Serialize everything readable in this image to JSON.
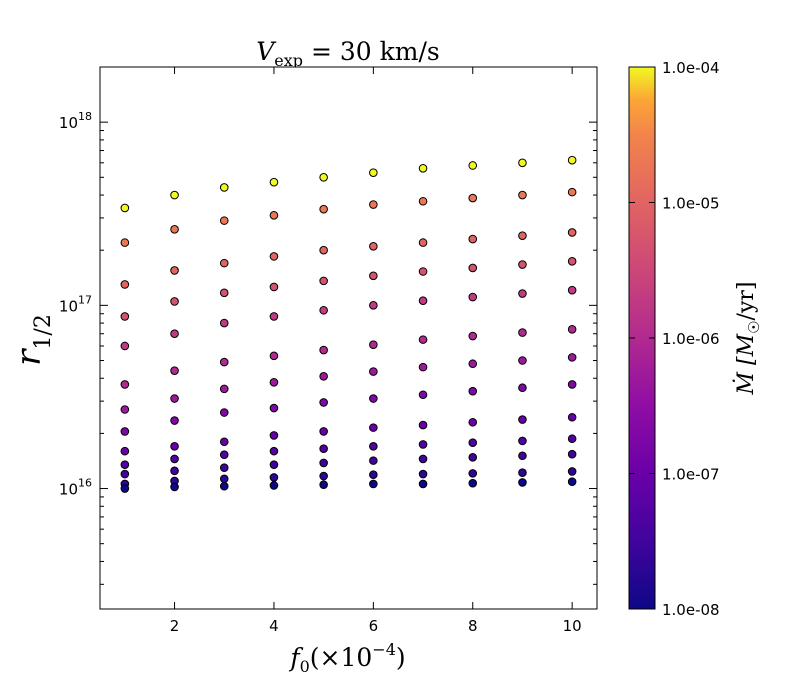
{
  "chart_data": {
    "type": "scatter",
    "title": "V_exp = 30 km/s",
    "title_main": "V",
    "title_sub": "exp",
    "title_rest": " = 30 km/s",
    "xlabel": "f₀(×10⁻⁴)",
    "xlabel_f": "f",
    "xlabel_f_sub": "0",
    "xlabel_rest": "(×10",
    "xlabel_exp": "−4",
    "xlabel_close": ")",
    "ylabel": "r_1/2",
    "ylabel_main": "r",
    "ylabel_sub": "1/2",
    "colorbar_label": "Ṁ [M☉/yr]",
    "colorbar_label_main": "Ṁ [M",
    "colorbar_label_sub": "☉",
    "colorbar_label_rest": "/yr]",
    "x_ticks": [
      2,
      4,
      6,
      8,
      10
    ],
    "x_tick_labels": [
      "2",
      "4",
      "6",
      "8",
      "10"
    ],
    "xlim": [
      0.5,
      10.5
    ],
    "yscale": "log",
    "ylim": [
      2200000000000000.0,
      2e+18
    ],
    "y_ticks": [
      1e+16,
      1e+17,
      1e+18
    ],
    "y_tick_base": "10",
    "y_tick_exps": [
      "16",
      "17",
      "18"
    ],
    "colorbar_scale": "log",
    "colorbar_range": [
      1e-08,
      0.0001
    ],
    "colorbar_ticks": [
      1e-08,
      1e-07,
      1e-06,
      1e-05,
      0.0001
    ],
    "colorbar_tick_labels": [
      "1.0e-08",
      "1.0e-07",
      "1.0e-06",
      "1.0e-05",
      "1.0e-04"
    ],
    "colormap": "plasma",
    "marker_edge_color": "#000000",
    "x": [
      1,
      2,
      3,
      4,
      5,
      6,
      7,
      8,
      9,
      10
    ],
    "series": [
      {
        "mdot": 0.0001,
        "color_value": 1.0,
        "values": [
          3.4e+17,
          4e+17,
          4.4e+17,
          4.7e+17,
          5e+17,
          5.3e+17,
          5.6e+17,
          5.8e+17,
          6e+17,
          6.2e+17
        ]
      },
      {
        "mdot": 2e-05,
        "color_value": 0.825,
        "values": [
          2.2e+17,
          2.6e+17,
          2.9e+17,
          3.1e+17,
          3.35e+17,
          3.55e+17,
          3.7e+17,
          3.85e+17,
          4e+17,
          4.15e+17
        ]
      },
      {
        "mdot": 1e-05,
        "color_value": 0.75,
        "values": [
          1.3e+17,
          1.55e+17,
          1.7e+17,
          1.85e+17,
          2e+17,
          2.1e+17,
          2.2e+17,
          2.3e+17,
          2.4e+17,
          2.5e+17
        ]
      },
      {
        "mdot": 5e-06,
        "color_value": 0.675,
        "values": [
          8.7e+16,
          1.05e+17,
          1.17e+17,
          1.26e+17,
          1.36e+17,
          1.45e+17,
          1.53e+17,
          1.6e+17,
          1.67e+17,
          1.74e+17
        ]
      },
      {
        "mdot": 2e-06,
        "color_value": 0.575,
        "values": [
          6e+16,
          7e+16,
          8e+16,
          8.7e+16,
          9.4e+16,
          1e+17,
          1.06e+17,
          1.11e+17,
          1.16e+17,
          1.21e+17
        ]
      },
      {
        "mdot": 1e-06,
        "color_value": 0.5,
        "values": [
          3.7e+16,
          4.4e+16,
          4.9e+16,
          5.3e+16,
          5.7e+16,
          6.1e+16,
          6.5e+16,
          6.8e+16,
          7.1e+16,
          7.4e+16
        ]
      },
      {
        "mdot": 5e-07,
        "color_value": 0.425,
        "values": [
          2.7e+16,
          3.1e+16,
          3.5e+16,
          3.8e+16,
          4.1e+16,
          4.35e+16,
          4.6e+16,
          4.8e+16,
          5e+16,
          5.2e+16
        ]
      },
      {
        "mdot": 2e-07,
        "color_value": 0.325,
        "values": [
          2.05e+16,
          2.35e+16,
          2.6e+16,
          2.75e+16,
          2.95e+16,
          3.1e+16,
          3.25e+16,
          3.4e+16,
          3.55e+16,
          3.7e+16
        ]
      },
      {
        "mdot": 1e-07,
        "color_value": 0.25,
        "values": [
          1.6e+16,
          1.7e+16,
          1.8e+16,
          1.95e+16,
          2.05e+16,
          2.15e+16,
          2.22e+16,
          2.3e+16,
          2.38e+16,
          2.45e+16
        ]
      },
      {
        "mdot": 5e-08,
        "color_value": 0.175,
        "values": [
          1.35e+16,
          1.45e+16,
          1.53e+16,
          1.6e+16,
          1.65e+16,
          1.7e+16,
          1.74e+16,
          1.78e+16,
          1.82e+16,
          1.87e+16
        ]
      },
      {
        "mdot": 3e-08,
        "color_value": 0.12,
        "values": [
          1.2e+16,
          1.25e+16,
          1.3e+16,
          1.35e+16,
          1.38e+16,
          1.42e+16,
          1.45e+16,
          1.48e+16,
          1.51e+16,
          1.54e+16
        ]
      },
      {
        "mdot": 2e-08,
        "color_value": 0.075,
        "values": [
          1.06e+16,
          1.1e+16,
          1.13e+16,
          1.15e+16,
          1.17e+16,
          1.19e+16,
          1.2e+16,
          1.21e+16,
          1.22e+16,
          1.24e+16
        ]
      },
      {
        "mdot": 1e-08,
        "color_value": 0.0,
        "values": [
          1e+16,
          1.02e+16,
          1.03e+16,
          1.04e+16,
          1.05e+16,
          1.06e+16,
          1.06e+16,
          1.07e+16,
          1.08e+16,
          1.09e+16
        ]
      }
    ],
    "grid": false,
    "legend": "none"
  }
}
